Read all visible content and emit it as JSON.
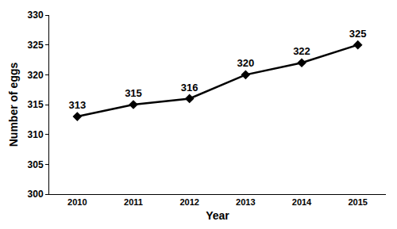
{
  "chart_data": {
    "type": "line",
    "x_label": "Year",
    "y_label": "Number of eggs",
    "categories": [
      "2010",
      "2011",
      "2012",
      "2013",
      "2014",
      "2015"
    ],
    "values": [
      313,
      315,
      316,
      320,
      322,
      325
    ],
    "color": "#000000",
    "marker": "diamond",
    "ylim": [
      300,
      330
    ],
    "yticks": [
      300,
      305,
      310,
      315,
      320,
      325,
      330
    ],
    "grid": false,
    "data_labels": true
  }
}
